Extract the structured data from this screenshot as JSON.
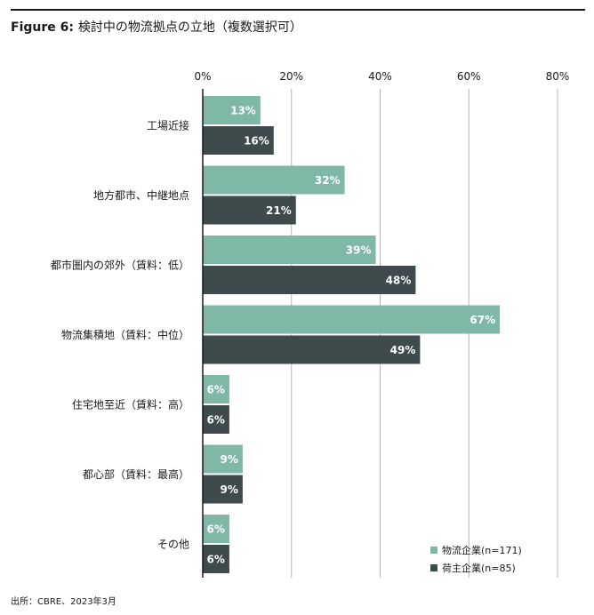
{
  "title": {
    "figure": "Figure 6:",
    "text": "検討中の物流拠点の立地（複数選択可）"
  },
  "source": "出所：CBRE、2023年3月",
  "colors": {
    "series_1": "#80b8a8",
    "series_2": "#3e4a4c",
    "grid": "#b5b5b5",
    "axis": "#1a1a1a"
  },
  "legend_items": [
    {
      "label": "物流企業(n=171)",
      "color": "#80b8a8"
    },
    {
      "label": "荷主企業(n=85)",
      "color": "#3e4a4c"
    }
  ],
  "chart_data": {
    "type": "bar",
    "orientation": "horizontal",
    "categories": [
      "工場近接",
      "地方都市、中継地点",
      "都市圏内の郊外（賃料：低）",
      "物流集積地（賃料：中位）",
      "住宅地至近（賃料：高）",
      "都心部（賃料：最高）",
      "その他"
    ],
    "series": [
      {
        "name": "物流企業(n=171)",
        "values": [
          13,
          32,
          39,
          67,
          6,
          9,
          6
        ],
        "labels": [
          "13%",
          "32%",
          "39%",
          "67%",
          "6%",
          "9%",
          "6%"
        ]
      },
      {
        "name": "荷主企業(n=85)",
        "values": [
          16,
          21,
          48,
          49,
          6,
          9,
          6
        ],
        "labels": [
          "16%",
          "21%",
          "48%",
          "49%",
          "6%",
          "9%",
          "6%"
        ]
      }
    ],
    "xlim": [
      0,
      80
    ],
    "ticks": [
      0,
      20,
      40,
      60,
      80
    ],
    "tick_labels": [
      "0%",
      "20%",
      "40%",
      "60%",
      "80%"
    ],
    "grid": true,
    "legend": "bottom-right"
  }
}
